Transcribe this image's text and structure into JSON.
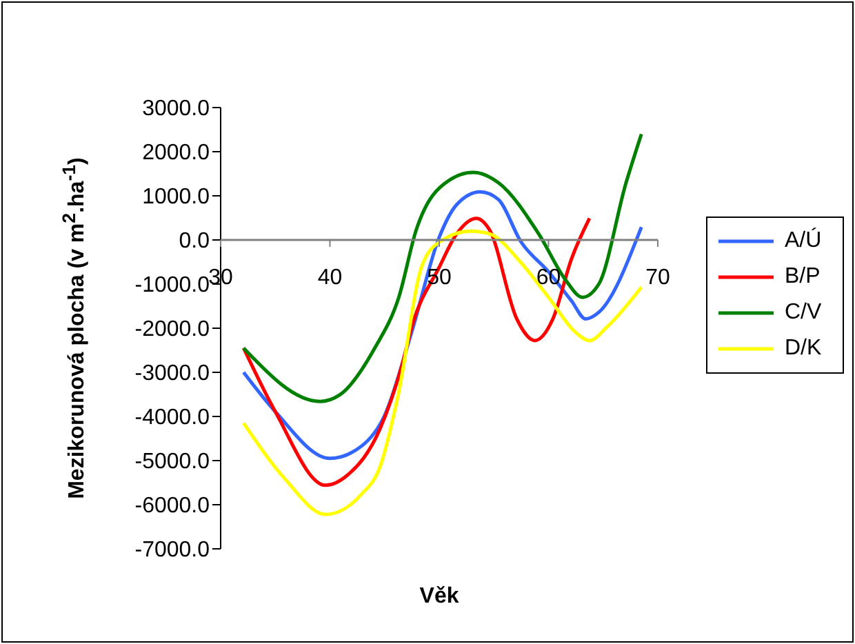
{
  "chart_data": {
    "type": "line",
    "xlabel": "Věk",
    "ylabel": "Mezikorunová plocha  (v m$^{2}$.ha$^{-1}$)",
    "xlim": [
      30,
      70
    ],
    "xticks": [
      30,
      40,
      50,
      60,
      70
    ],
    "ylim": [
      -7000,
      3000
    ],
    "yticks": [
      {
        "value": -7000,
        "label": "-7000.0"
      },
      {
        "value": -6000,
        "label": "-6000.0"
      },
      {
        "value": -5000,
        "label": "-5000.0"
      },
      {
        "value": -4000,
        "label": "-4000.0"
      },
      {
        "value": -3000,
        "label": "-3000.0"
      },
      {
        "value": -2000,
        "label": "-2000.0"
      },
      {
        "value": -1000,
        "label": "-1000.0"
      },
      {
        "value": 0,
        "label": "0.0"
      },
      {
        "value": 1000,
        "label": "1000.0"
      },
      {
        "value": 2000,
        "label": "2000.0"
      },
      {
        "value": 3000,
        "label": "3000.0"
      }
    ],
    "grid": false,
    "legend": "right",
    "marker": "none",
    "line_style": "solid",
    "series": [
      {
        "name": "A/Ú",
        "color": "#3366ff",
        "x": [
          32.1,
          35,
          40,
          42.9,
          45,
          47.5,
          50,
          51.6,
          53.75,
          55.4,
          57.5,
          60,
          62.1,
          63.4,
          64.6,
          68.5
        ],
        "values": [
          -3000,
          -3890,
          -4950,
          -4670,
          -3980,
          -2070,
          60,
          800,
          1090,
          920,
          -50,
          -720,
          -1380,
          -1790,
          -1640,
          290
        ]
      },
      {
        "name": "B/P",
        "color": "#ff0000",
        "x": [
          32.1,
          35,
          39.6,
          41.6,
          44.6,
          46.6,
          47.5,
          50,
          51.6,
          53.4,
          54.6,
          57.1,
          58.75,
          60.4,
          62.1,
          63.75
        ],
        "values": [
          -2450,
          -3890,
          -5560,
          -5330,
          -4270,
          -2830,
          -1960,
          -620,
          140,
          490,
          230,
          -1790,
          -2280,
          -1790,
          -430,
          490
        ]
      },
      {
        "name": "C/V",
        "color": "#008000",
        "x": [
          32.1,
          39.1,
          40.9,
          44.1,
          46.3,
          47.9,
          50.9,
          53.1,
          55.4,
          59.1,
          61.6,
          63.1,
          64.6,
          67.1,
          68.5
        ],
        "values": [
          -2450,
          -3660,
          -3510,
          -2450,
          -1300,
          230,
          1350,
          1530,
          1300,
          140,
          -920,
          -1300,
          -1000,
          1300,
          2400
        ]
      },
      {
        "name": "D/K",
        "color": "#ffff00",
        "x": [
          32.1,
          35.9,
          39.6,
          42.9,
          44.6,
          46.25,
          48.4,
          50,
          52.9,
          54.6,
          57.5,
          60,
          62.5,
          63.75,
          65.4,
          68.5
        ],
        "values": [
          -4150,
          -5420,
          -6220,
          -5760,
          -5130,
          -3510,
          -600,
          -50,
          200,
          140,
          -520,
          -1300,
          -2100,
          -2280,
          -1960,
          -1070
        ]
      }
    ]
  }
}
